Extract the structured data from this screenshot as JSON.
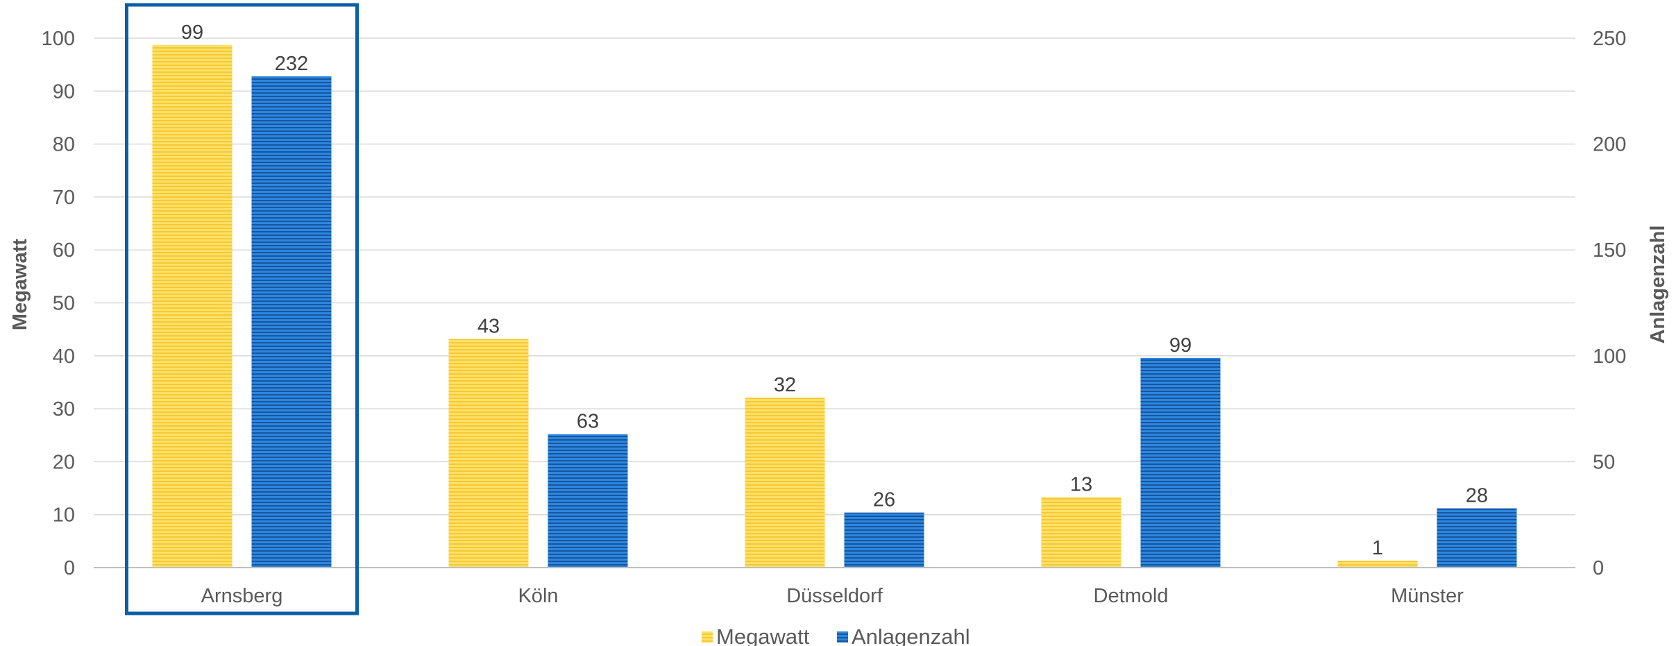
{
  "chart_data": {
    "type": "bar",
    "categories": [
      "Arnsberg",
      "Köln",
      "Düsseldorf",
      "Detmold",
      "Münster"
    ],
    "series": [
      {
        "name": "Megawatt",
        "axis": "left",
        "values": [
          99,
          43,
          32,
          13,
          1
        ],
        "plot_values": [
          98.7,
          43.2,
          32.1,
          13.3,
          1.3
        ],
        "color": "#FFD84D"
      },
      {
        "name": "Anlagenzahl",
        "axis": "right",
        "values": [
          232,
          63,
          26,
          99,
          28
        ],
        "color": "#1F6FBF"
      }
    ],
    "ylabel": "Megawatt",
    "y2label": "Anlagenzahl",
    "ylim": [
      0,
      100
    ],
    "y2lim": [
      0,
      250
    ],
    "yticks": [
      0,
      10,
      20,
      30,
      40,
      50,
      60,
      70,
      80,
      90,
      100
    ],
    "y2ticks": [
      0,
      50,
      100,
      150,
      200,
      250
    ],
    "grid": true,
    "legend": "bottom-center",
    "highlighted_category": "Arnsberg",
    "highlight_color": "#0B5FA8"
  }
}
